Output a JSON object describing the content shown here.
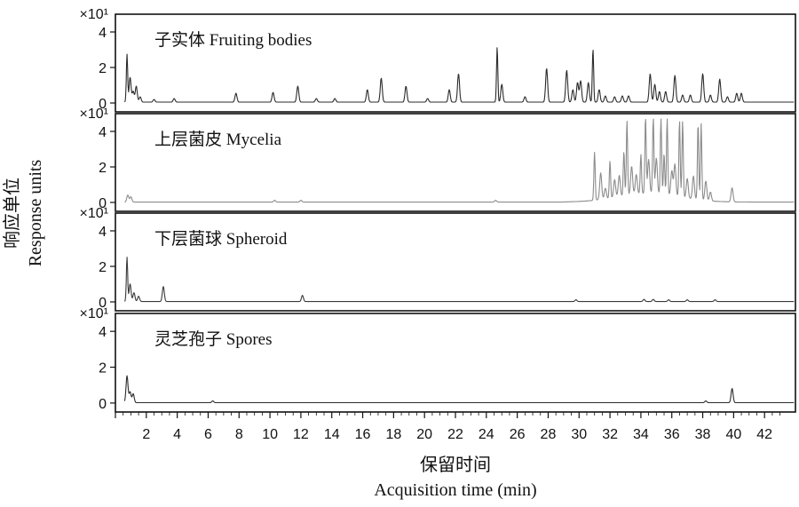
{
  "chart_data": {
    "type": "line",
    "x_axis": {
      "label_zh": "保留时间",
      "label_en": "Acquisition time (min)",
      "range": [
        0,
        44
      ],
      "ticks": [
        2,
        4,
        6,
        8,
        10,
        12,
        14,
        16,
        18,
        20,
        22,
        24,
        26,
        28,
        30,
        32,
        34,
        36,
        38,
        40,
        42
      ]
    },
    "y_axis": {
      "label_zh": "响应单位",
      "label_en": "Response units",
      "multiplier": "×10¹",
      "range": [
        -0.5,
        5
      ],
      "ticks": [
        0,
        2,
        4
      ]
    },
    "panels": [
      {
        "title": "子实体 Fruiting bodies",
        "color": "#2b2b2b",
        "baseline": 0.05,
        "peaks": [
          [
            0.75,
            2.7
          ],
          [
            0.95,
            1.4
          ],
          [
            1.15,
            0.6
          ],
          [
            1.35,
            0.9
          ],
          [
            1.6,
            0.3
          ],
          [
            2.5,
            0.15
          ],
          [
            3.8,
            0.2
          ],
          [
            7.8,
            0.5
          ],
          [
            10.2,
            0.55
          ],
          [
            11.8,
            0.9
          ],
          [
            13.0,
            0.2
          ],
          [
            14.2,
            0.2
          ],
          [
            16.3,
            0.7
          ],
          [
            17.2,
            1.35
          ],
          [
            18.8,
            0.9
          ],
          [
            20.2,
            0.2
          ],
          [
            21.6,
            0.7
          ],
          [
            22.2,
            1.6
          ],
          [
            24.7,
            3.1
          ],
          [
            25.0,
            1.0
          ],
          [
            26.5,
            0.3
          ],
          [
            27.9,
            1.9
          ],
          [
            29.2,
            1.8
          ],
          [
            29.6,
            0.7
          ],
          [
            29.9,
            1.1
          ],
          [
            30.1,
            1.2
          ],
          [
            30.6,
            1.1
          ],
          [
            30.9,
            3.0
          ],
          [
            31.3,
            0.7
          ],
          [
            31.7,
            0.35
          ],
          [
            32.3,
            0.3
          ],
          [
            32.8,
            0.35
          ],
          [
            33.2,
            0.35
          ],
          [
            34.6,
            1.6
          ],
          [
            34.9,
            1.0
          ],
          [
            35.2,
            0.6
          ],
          [
            35.6,
            0.6
          ],
          [
            36.2,
            1.5
          ],
          [
            36.7,
            0.4
          ],
          [
            37.2,
            0.4
          ],
          [
            38.0,
            1.6
          ],
          [
            38.5,
            0.4
          ],
          [
            39.1,
            1.3
          ],
          [
            39.6,
            0.3
          ],
          [
            40.2,
            0.5
          ],
          [
            40.5,
            0.5
          ]
        ]
      },
      {
        "title": "上层菌皮 Mycelia",
        "color": "#8c8c8c",
        "baseline": 0.02,
        "peaks": [
          [
            0.8,
            0.4
          ],
          [
            1.0,
            0.3
          ],
          [
            10.3,
            0.1
          ],
          [
            12.0,
            0.1
          ],
          [
            24.6,
            0.1
          ],
          [
            31.0,
            2.7
          ],
          [
            31.4,
            1.5
          ],
          [
            31.7,
            0.6
          ],
          [
            32.0,
            2.1
          ],
          [
            32.3,
            1.0
          ],
          [
            32.6,
            1.2
          ],
          [
            32.9,
            2.5
          ],
          [
            33.1,
            4.2
          ],
          [
            33.4,
            1.6
          ],
          [
            33.7,
            1.1
          ],
          [
            34.0,
            2.2
          ],
          [
            34.3,
            4.3
          ],
          [
            34.5,
            1.9
          ],
          [
            34.8,
            4.3
          ],
          [
            35.0,
            2.0
          ],
          [
            35.3,
            4.3
          ],
          [
            35.5,
            2.3
          ],
          [
            35.7,
            4.3
          ],
          [
            36.0,
            1.4
          ],
          [
            36.2,
            1.8
          ],
          [
            36.5,
            4.3
          ],
          [
            36.7,
            4.3
          ],
          [
            37.0,
            1.1
          ],
          [
            37.4,
            1.3
          ],
          [
            37.7,
            4.3
          ],
          [
            37.9,
            4.3
          ],
          [
            38.2,
            1.1
          ],
          [
            38.5,
            0.5
          ],
          [
            39.9,
            0.8
          ]
        ]
      },
      {
        "title": "下层菌球 Spheroid",
        "color": "#3a3a3a",
        "baseline": 0.02,
        "peaks": [
          [
            0.75,
            2.5
          ],
          [
            0.95,
            1.0
          ],
          [
            1.2,
            0.5
          ],
          [
            1.5,
            0.3
          ],
          [
            3.1,
            0.85
          ],
          [
            12.1,
            0.35
          ],
          [
            29.8,
            0.1
          ],
          [
            34.2,
            0.12
          ],
          [
            34.8,
            0.12
          ],
          [
            35.8,
            0.1
          ],
          [
            37.0,
            0.1
          ],
          [
            38.8,
            0.1
          ]
        ]
      },
      {
        "title": "灵芝孢子 Spores",
        "color": "#2b2b2b",
        "baseline": 0.02,
        "peaks": [
          [
            0.75,
            1.5
          ],
          [
            0.95,
            0.6
          ],
          [
            1.15,
            0.5
          ],
          [
            6.3,
            0.1
          ],
          [
            38.2,
            0.1
          ],
          [
            39.9,
            0.8
          ]
        ]
      }
    ]
  }
}
